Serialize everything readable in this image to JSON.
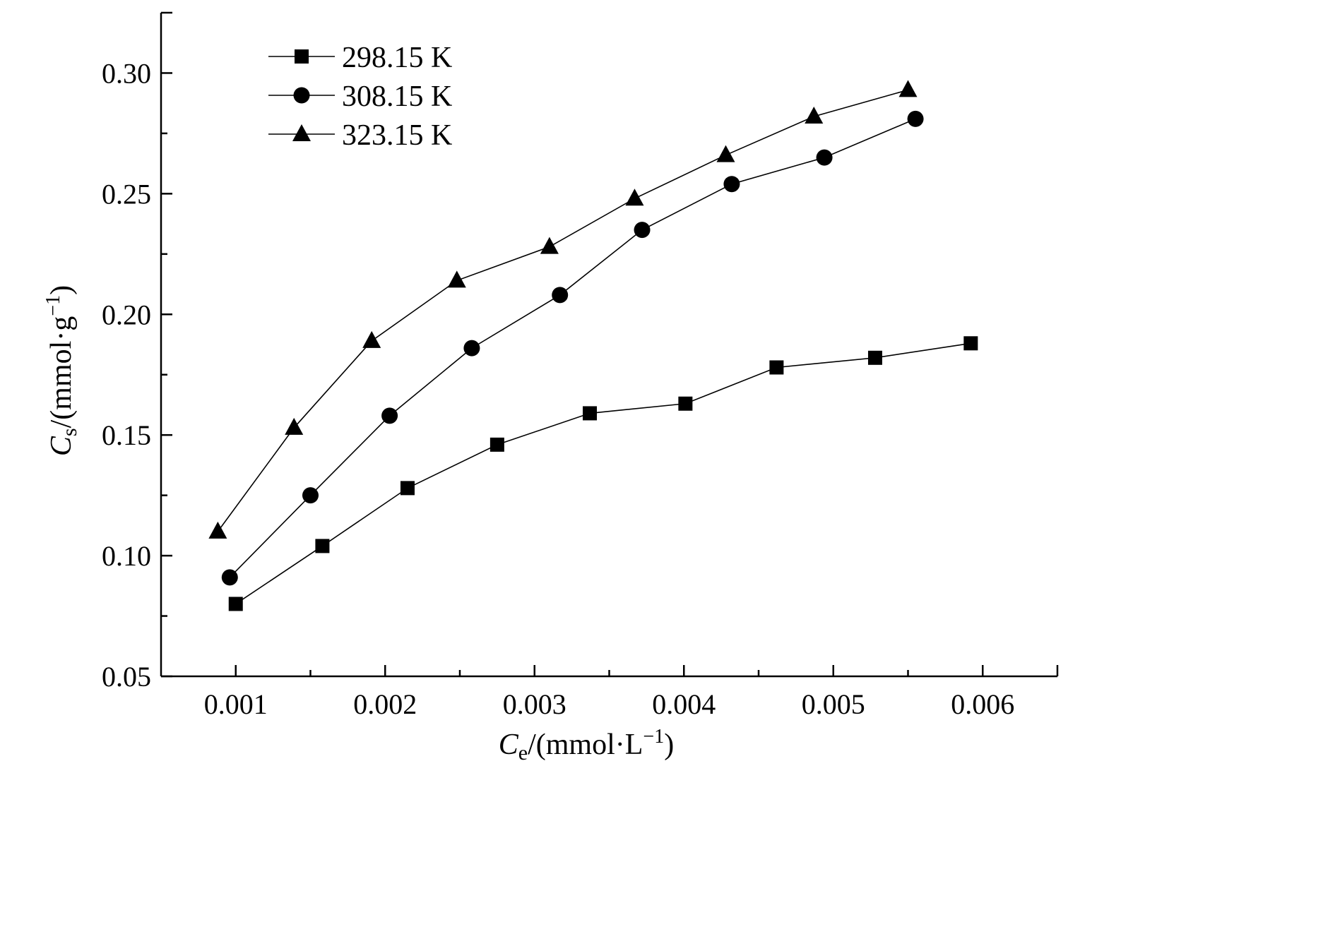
{
  "chart_data": {
    "type": "line",
    "xlabel": {
      "main": "C",
      "sub": "e",
      "unit_pre": "/(mmol·L",
      "sup": "−1",
      "unit_post": ")"
    },
    "ylabel": {
      "main": "C",
      "sub": "s",
      "unit_pre": "/(mmol·g",
      "sup": "−1",
      "unit_post": ")"
    },
    "xlim": [
      0.0005,
      0.0065
    ],
    "ylim": [
      0.05,
      0.325
    ],
    "x_ticks": [
      "0.001",
      "0.002",
      "0.003",
      "0.004",
      "0.005",
      "0.006"
    ],
    "y_ticks": [
      "0.05",
      "0.10",
      "0.15",
      "0.20",
      "0.25",
      "0.30"
    ],
    "grid": false,
    "legend_position": "top-left",
    "series": [
      {
        "name": "298.15 K",
        "marker": "square",
        "x": [
          0.001,
          0.00158,
          0.00215,
          0.00275,
          0.00337,
          0.00401,
          0.00462,
          0.00528,
          0.00592
        ],
        "y": [
          0.08,
          0.104,
          0.128,
          0.146,
          0.159,
          0.163,
          0.178,
          0.182,
          0.188
        ]
      },
      {
        "name": "308.15 K",
        "marker": "circle",
        "x": [
          0.00096,
          0.0015,
          0.00203,
          0.00258,
          0.00317,
          0.00372,
          0.00432,
          0.00494,
          0.00555
        ],
        "y": [
          0.091,
          0.125,
          0.158,
          0.186,
          0.208,
          0.235,
          0.254,
          0.265,
          0.281
        ]
      },
      {
        "name": "323.15 K",
        "marker": "triangle",
        "x": [
          0.00088,
          0.00139,
          0.00191,
          0.00248,
          0.0031,
          0.00367,
          0.00428,
          0.00487,
          0.0055
        ],
        "y": [
          0.11,
          0.153,
          0.189,
          0.214,
          0.228,
          0.248,
          0.266,
          0.282,
          0.293
        ]
      }
    ]
  }
}
